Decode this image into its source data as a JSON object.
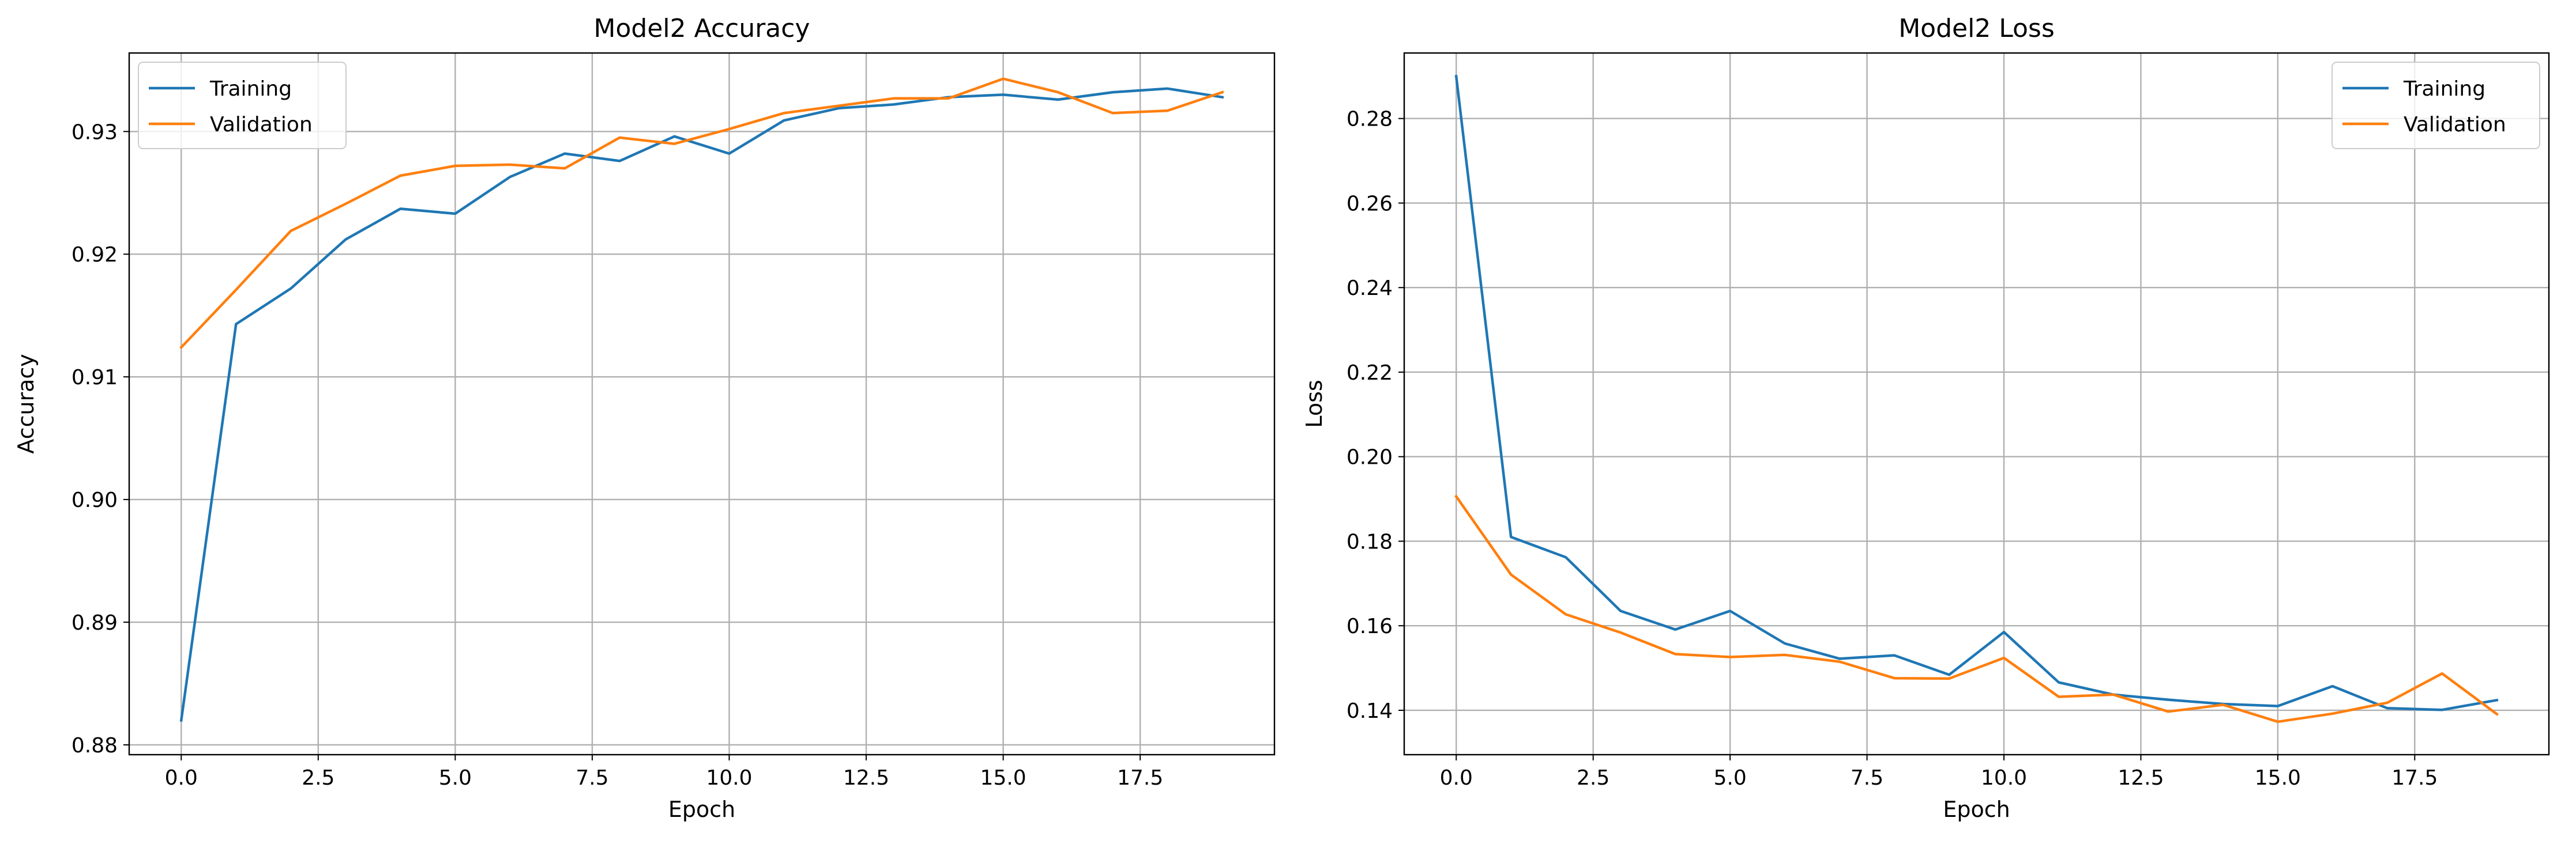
{
  "chart_data": [
    {
      "type": "line",
      "title": "Model2 Accuracy",
      "xlabel": "Epoch",
      "ylabel": "Accuracy",
      "xlim": [
        -0.95,
        19.95
      ],
      "ylim": [
        0.8792,
        0.9364
      ],
      "xticks": [
        0,
        2.5,
        5,
        7.5,
        10,
        12.5,
        15,
        17.5
      ],
      "xtick_labels": [
        "0.0",
        "2.5",
        "5.0",
        "7.5",
        "10.0",
        "12.5",
        "15.0",
        "17.5"
      ],
      "yticks": [
        0.88,
        0.89,
        0.9,
        0.91,
        0.92,
        0.93
      ],
      "ytick_labels": [
        "0.88",
        "0.89",
        "0.90",
        "0.91",
        "0.92",
        "0.93"
      ],
      "grid": true,
      "legend_position": "top-left",
      "x": [
        0,
        1,
        2,
        3,
        4,
        5,
        6,
        7,
        8,
        9,
        10,
        11,
        12,
        13,
        14,
        15,
        16,
        17,
        18,
        19
      ],
      "series": [
        {
          "name": "Training",
          "color": "#1f77b4",
          "values": [
            0.882,
            0.9143,
            0.9172,
            0.9212,
            0.9237,
            0.9233,
            0.9263,
            0.9282,
            0.9276,
            0.9296,
            0.9282,
            0.9309,
            0.9319,
            0.9322,
            0.9328,
            0.933,
            0.9326,
            0.9332,
            0.9335,
            0.9328
          ]
        },
        {
          "name": "Validation",
          "color": "#ff7f0e",
          "values": [
            0.9124,
            0.9171,
            0.9219,
            0.9241,
            0.9264,
            0.9272,
            0.9273,
            0.927,
            0.9295,
            0.929,
            0.9302,
            0.9315,
            0.9321,
            0.9327,
            0.9327,
            0.9343,
            0.9332,
            0.9315,
            0.9317,
            0.9332
          ]
        }
      ]
    },
    {
      "type": "line",
      "title": "Model2 Loss",
      "xlabel": "Epoch",
      "ylabel": "Loss",
      "xlim": [
        -0.95,
        19.95
      ],
      "ylim": [
        0.1295,
        0.2955
      ],
      "xticks": [
        0,
        2.5,
        5,
        7.5,
        10,
        12.5,
        15,
        17.5
      ],
      "xtick_labels": [
        "0.0",
        "2.5",
        "5.0",
        "7.5",
        "10.0",
        "12.5",
        "15.0",
        "17.5"
      ],
      "yticks": [
        0.14,
        0.16,
        0.18,
        0.2,
        0.22,
        0.24,
        0.26,
        0.28
      ],
      "ytick_labels": [
        "0.14",
        "0.16",
        "0.18",
        "0.20",
        "0.22",
        "0.24",
        "0.26",
        "0.28"
      ],
      "grid": true,
      "legend_position": "top-right",
      "x": [
        0,
        1,
        2,
        3,
        4,
        5,
        6,
        7,
        8,
        9,
        10,
        11,
        12,
        13,
        14,
        15,
        16,
        17,
        18,
        19
      ],
      "series": [
        {
          "name": "Training",
          "color": "#1f77b4",
          "values": [
            0.29,
            0.181,
            0.1762,
            0.1635,
            0.1591,
            0.1635,
            0.1558,
            0.1522,
            0.153,
            0.1484,
            0.1585,
            0.1466,
            0.1437,
            0.1425,
            0.1415,
            0.141,
            0.1457,
            0.1405,
            0.1401,
            0.1424
          ]
        },
        {
          "name": "Validation",
          "color": "#ff7f0e",
          "values": [
            0.1906,
            0.1721,
            0.1627,
            0.1584,
            0.1533,
            0.1526,
            0.1531,
            0.1515,
            0.1476,
            0.1475,
            0.1524,
            0.1432,
            0.1437,
            0.1397,
            0.1413,
            0.1373,
            0.1392,
            0.1418,
            0.1487,
            0.1391
          ]
        }
      ]
    }
  ]
}
